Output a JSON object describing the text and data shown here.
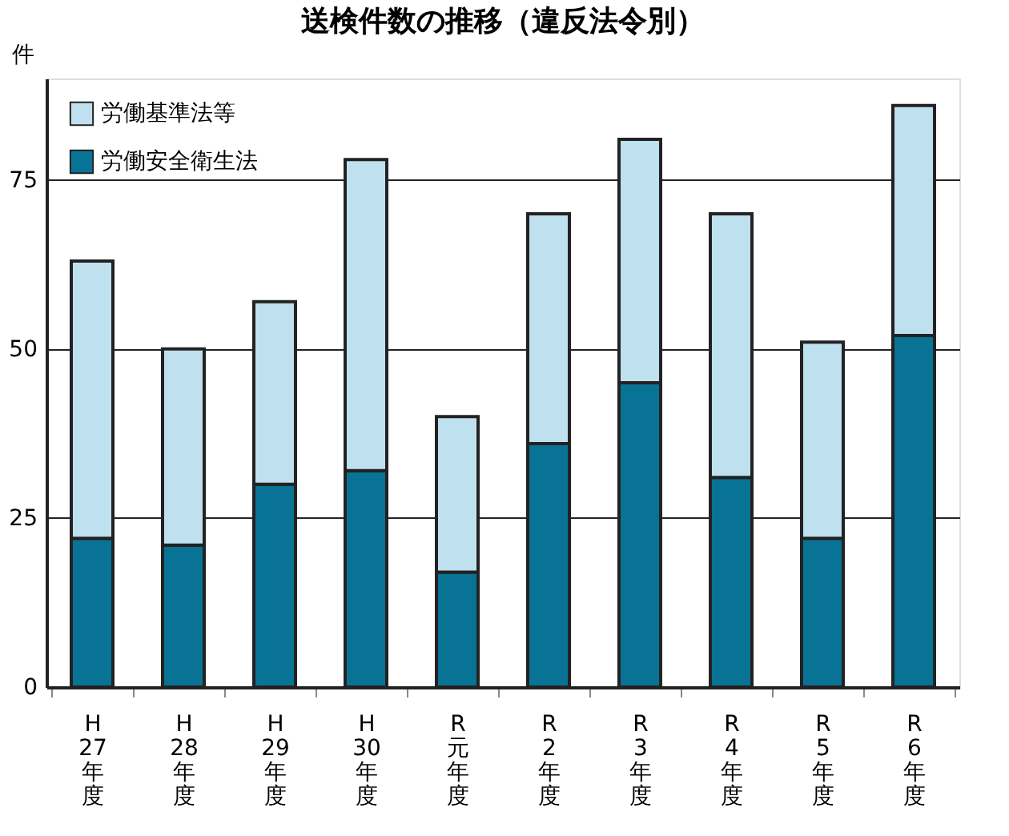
{
  "chart_data": {
    "type": "bar",
    "title": "送検件数の推移（違反法令別）",
    "ylabel": "件",
    "stacked": true,
    "categories": [
      "H27年度",
      "H28年度",
      "H29年度",
      "H30年度",
      "R元年度",
      "R2年度",
      "R3年度",
      "R4年度",
      "R5年度",
      "R6年度"
    ],
    "series": [
      {
        "name": "労働安全衛生法",
        "color": "#087394",
        "values": [
          22,
          21,
          30,
          32,
          17,
          36,
          45,
          31,
          22,
          52
        ]
      },
      {
        "name": "労働基準法等",
        "color": "#bfe0ef",
        "values": [
          41,
          29,
          27,
          46,
          23,
          34,
          36,
          39,
          29,
          34
        ]
      }
    ],
    "ylim": [
      0,
      90
    ],
    "yticks": [
      0,
      25,
      50,
      75
    ],
    "grid": "y",
    "legend": "top left"
  }
}
